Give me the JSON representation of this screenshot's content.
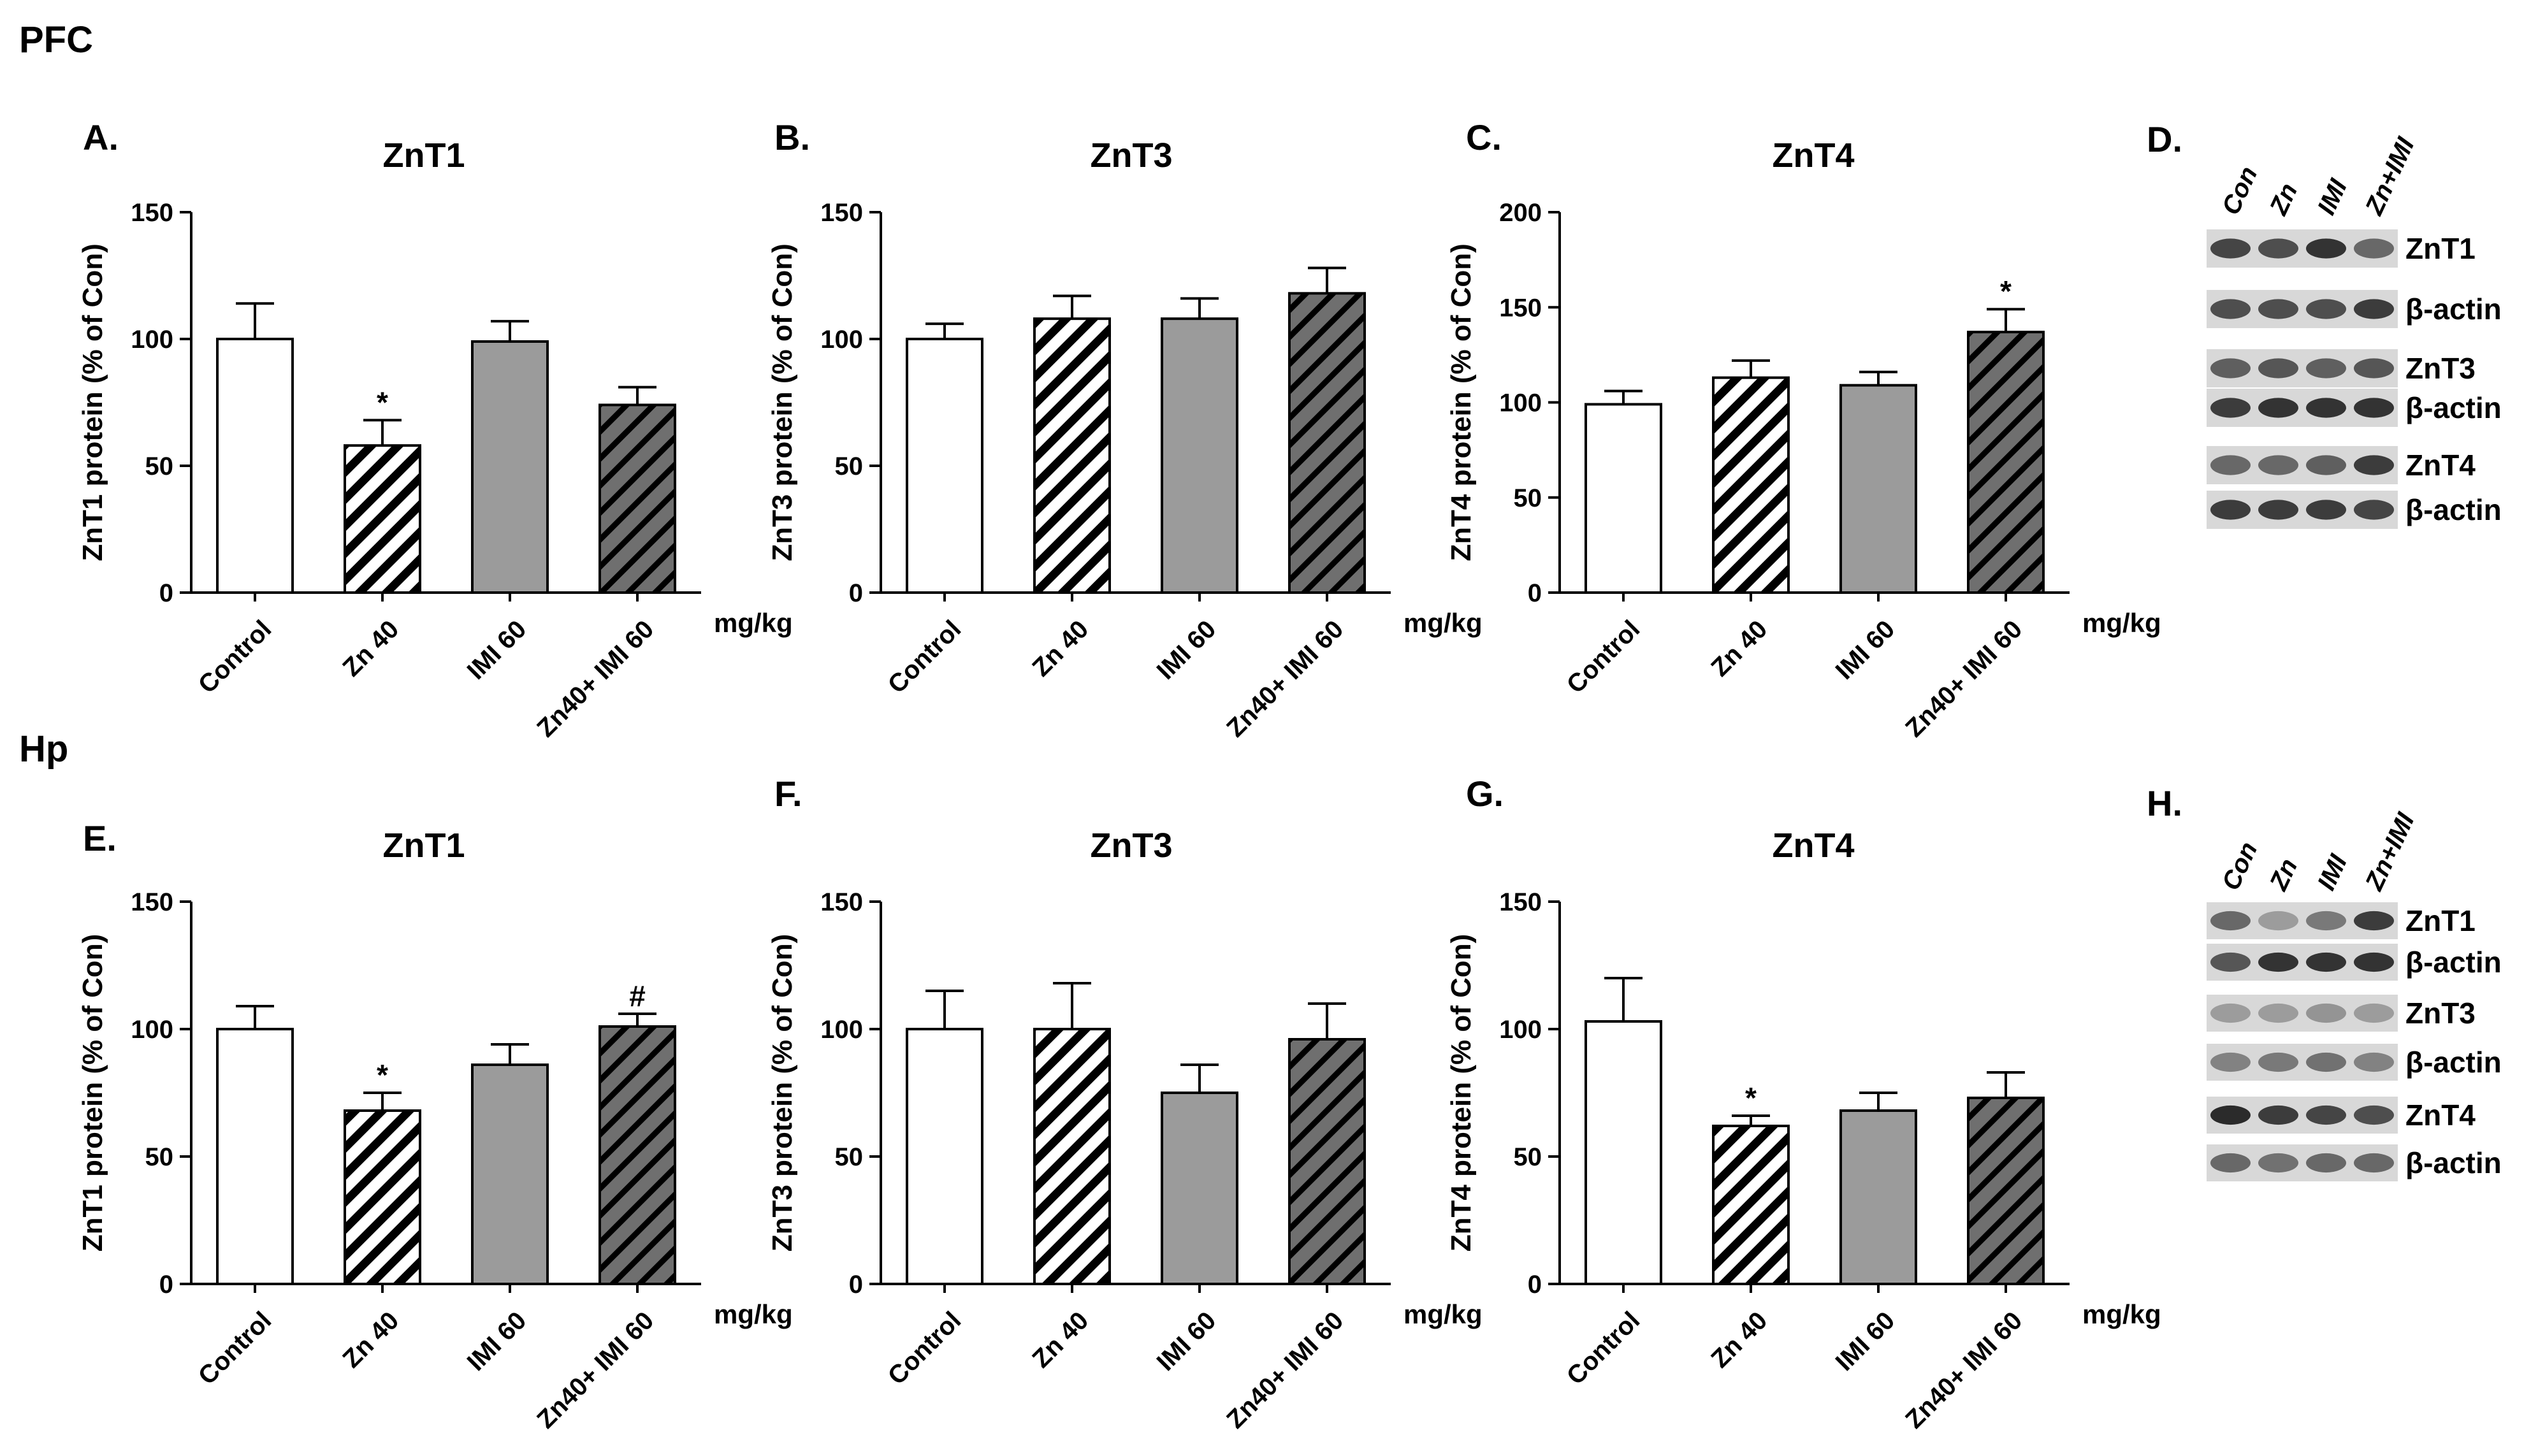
{
  "figure": {
    "sections": [
      {
        "label": "PFC"
      },
      {
        "label": "Hp"
      }
    ],
    "unit": "mg/kg"
  },
  "chart_data": [
    {
      "panel": "A.",
      "type": "bar",
      "title": "ZnT1",
      "ylabel": "ZnT1 protein (% of Con)",
      "ylim": [
        0,
        150
      ],
      "yticks": [
        0,
        50,
        100,
        150
      ],
      "categories": [
        "Control",
        "Zn 40",
        "IMI 60",
        "Zn40+ IMI 60"
      ],
      "values": [
        100,
        58,
        99,
        74
      ],
      "errors": [
        14,
        10,
        8,
        7
      ],
      "markers": [
        "",
        "*",
        "",
        ""
      ]
    },
    {
      "panel": "B.",
      "type": "bar",
      "title": "ZnT3",
      "ylabel": "ZnT3 protein (% of Con)",
      "ylim": [
        0,
        150
      ],
      "yticks": [
        0,
        50,
        100,
        150
      ],
      "categories": [
        "Control",
        "Zn 40",
        "IMI 60",
        "Zn40+ IMI 60"
      ],
      "values": [
        100,
        108,
        108,
        118
      ],
      "errors": [
        6,
        9,
        8,
        10
      ],
      "markers": [
        "",
        "",
        "",
        ""
      ]
    },
    {
      "panel": "C.",
      "type": "bar",
      "title": "ZnT4",
      "ylabel": "ZnT4 protein (% of Con)",
      "ylim": [
        0,
        200
      ],
      "yticks": [
        0,
        50,
        100,
        150,
        200
      ],
      "categories": [
        "Control",
        "Zn 40",
        "IMI 60",
        "Zn40+ IMI 60"
      ],
      "values": [
        99,
        113,
        109,
        137
      ],
      "errors": [
        7,
        9,
        7,
        12
      ],
      "markers": [
        "",
        "",
        "",
        "*"
      ]
    },
    {
      "panel": "E.",
      "type": "bar",
      "title": "ZnT1",
      "ylabel": "ZnT1 protein (% of Con)",
      "ylim": [
        0,
        150
      ],
      "yticks": [
        0,
        50,
        100,
        150
      ],
      "categories": [
        "Control",
        "Zn 40",
        "IMI 60",
        "Zn40+ IMI 60"
      ],
      "values": [
        100,
        68,
        86,
        101
      ],
      "errors": [
        9,
        7,
        8,
        5
      ],
      "markers": [
        "",
        "*",
        "",
        "#"
      ]
    },
    {
      "panel": "F.",
      "type": "bar",
      "title": "ZnT3",
      "ylabel": "ZnT3 protein (% of Con)",
      "ylim": [
        0,
        150
      ],
      "yticks": [
        0,
        50,
        100,
        150
      ],
      "categories": [
        "Control",
        "Zn 40",
        "IMI 60",
        "Zn40+ IMI 60"
      ],
      "values": [
        100,
        100,
        75,
        96
      ],
      "errors": [
        15,
        18,
        11,
        14
      ],
      "markers": [
        "",
        "",
        "",
        ""
      ]
    },
    {
      "panel": "G.",
      "type": "bar",
      "title": "ZnT4",
      "ylabel": "ZnT4 protein (% of Con)",
      "ylim": [
        0,
        150
      ],
      "yticks": [
        0,
        50,
        100,
        150
      ],
      "categories": [
        "Control",
        "Zn 40",
        "IMI 60",
        "Zn40+ IMI 60"
      ],
      "values": [
        103,
        62,
        68,
        73
      ],
      "errors": [
        17,
        4,
        7,
        10
      ],
      "markers": [
        "",
        "*",
        "",
        ""
      ]
    }
  ],
  "blots": [
    {
      "panel": "D.",
      "lanes": [
        "Con",
        "Zn",
        "IMI",
        "Zn+IMI"
      ],
      "bands": [
        "ZnT1",
        "β-actin",
        "ZnT3",
        "β-actin",
        "ZnT4",
        "β-actin"
      ]
    },
    {
      "panel": "H.",
      "lanes": [
        "Con",
        "Zn",
        "IMI",
        "Zn+IMI"
      ],
      "bands": [
        "ZnT1",
        "β-actin",
        "ZnT3",
        "β-actin",
        "ZnT4",
        "β-actin"
      ]
    }
  ],
  "colors": {
    "control": "#ffffff",
    "zn": "#ffffff",
    "imi": "#9b9b9b",
    "combo": "#6f6f6f",
    "ink": "#000000"
  }
}
